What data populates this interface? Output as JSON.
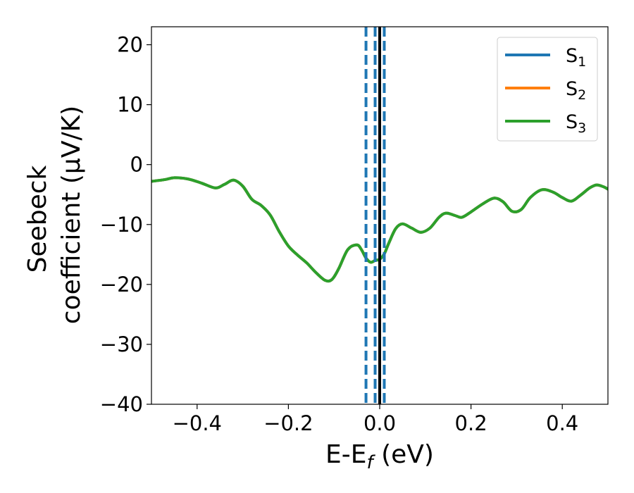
{
  "chart_data": {
    "type": "line",
    "title": "",
    "xlabel": {
      "main": "E-E",
      "sub": "f",
      "unit": " (eV)"
    },
    "ylabel": {
      "line1": "Seebeck",
      "line2": "coefficient  (μV/K)"
    },
    "xlim": [
      -0.5,
      0.5
    ],
    "ylim": [
      -40,
      23
    ],
    "xticks": [
      -0.4,
      -0.2,
      0.0,
      0.2,
      0.4
    ],
    "xtick_labels": [
      "−0.4",
      "−0.2",
      "0.0",
      "0.2",
      "0.4"
    ],
    "yticks": [
      -40,
      -30,
      -20,
      -10,
      0,
      10,
      20
    ],
    "ytick_labels": [
      "−40",
      "−30",
      "−20",
      "−10",
      "0",
      "10",
      "20"
    ],
    "grid": false,
    "legend_position": "top-right",
    "vertical_lines": [
      {
        "x": -0.03,
        "style": "dashed",
        "color": "#1f77b4"
      },
      {
        "x": -0.01,
        "style": "dashed",
        "color": "#1f77b4"
      },
      {
        "x": 0.01,
        "style": "dashed",
        "color": "#1f77b4"
      },
      {
        "x": 0.0,
        "style": "solid",
        "color": "#000000"
      }
    ],
    "x": [
      -0.5,
      -0.47,
      -0.45,
      -0.42,
      -0.39,
      -0.36,
      -0.34,
      -0.32,
      -0.3,
      -0.28,
      -0.26,
      -0.24,
      -0.22,
      -0.2,
      -0.18,
      -0.16,
      -0.14,
      -0.12,
      -0.105,
      -0.09,
      -0.07,
      -0.05,
      -0.04,
      -0.03,
      -0.02,
      -0.01,
      0.0,
      0.01,
      0.02,
      0.035,
      0.05,
      0.07,
      0.09,
      0.11,
      0.13,
      0.145,
      0.165,
      0.18,
      0.2,
      0.225,
      0.25,
      0.27,
      0.29,
      0.31,
      0.33,
      0.355,
      0.38,
      0.4,
      0.42,
      0.44,
      0.46,
      0.475,
      0.49,
      0.5
    ],
    "series": [
      {
        "name": "S1",
        "name_main": "S",
        "name_sub": "1",
        "color": "#1f77b4",
        "values": [
          -2.8,
          -2.5,
          -2.2,
          -2.4,
          -3.1,
          -3.9,
          -3.3,
          -2.6,
          -3.6,
          -5.8,
          -6.8,
          -8.4,
          -11.2,
          -13.6,
          -15.1,
          -16.4,
          -18.0,
          -19.3,
          -19.2,
          -17.4,
          -14.2,
          -13.4,
          -14.2,
          -15.6,
          -16.3,
          -16.0,
          -15.8,
          -14.9,
          -13.1,
          -10.7,
          -9.9,
          -10.6,
          -11.3,
          -10.6,
          -8.8,
          -8.1,
          -8.5,
          -8.8,
          -7.9,
          -6.6,
          -5.6,
          -6.2,
          -7.8,
          -7.5,
          -5.5,
          -4.2,
          -4.6,
          -5.5,
          -6.1,
          -5.1,
          -3.9,
          -3.4,
          -3.7,
          -4.1
        ]
      },
      {
        "name": "S2",
        "name_main": "S",
        "name_sub": "2",
        "color": "#ff7f0e",
        "values": [
          -2.8,
          -2.5,
          -2.2,
          -2.4,
          -3.1,
          -3.9,
          -3.3,
          -2.6,
          -3.6,
          -5.8,
          -6.8,
          -8.4,
          -11.2,
          -13.6,
          -15.1,
          -16.4,
          -18.0,
          -19.3,
          -19.2,
          -17.4,
          -14.2,
          -13.4,
          -14.2,
          -15.6,
          -16.3,
          -16.0,
          -15.8,
          -14.9,
          -13.1,
          -10.7,
          -9.9,
          -10.6,
          -11.3,
          -10.6,
          -8.8,
          -8.1,
          -8.5,
          -8.8,
          -7.9,
          -6.6,
          -5.6,
          -6.2,
          -7.8,
          -7.5,
          -5.5,
          -4.2,
          -4.6,
          -5.5,
          -6.1,
          -5.1,
          -3.9,
          -3.4,
          -3.7,
          -4.1
        ]
      },
      {
        "name": "S3",
        "name_main": "S",
        "name_sub": "3",
        "color": "#2ca02c",
        "values": [
          -2.8,
          -2.5,
          -2.2,
          -2.4,
          -3.1,
          -3.9,
          -3.3,
          -2.6,
          -3.6,
          -5.8,
          -6.8,
          -8.4,
          -11.2,
          -13.6,
          -15.1,
          -16.4,
          -18.0,
          -19.3,
          -19.2,
          -17.4,
          -14.2,
          -13.4,
          -14.2,
          -15.6,
          -16.3,
          -16.0,
          -15.8,
          -14.9,
          -13.1,
          -10.7,
          -9.9,
          -10.6,
          -11.3,
          -10.6,
          -8.8,
          -8.1,
          -8.5,
          -8.8,
          -7.9,
          -6.6,
          -5.6,
          -6.2,
          -7.8,
          -7.5,
          -5.5,
          -4.2,
          -4.6,
          -5.5,
          -6.1,
          -5.1,
          -3.9,
          -3.4,
          -3.7,
          -4.1
        ]
      }
    ]
  }
}
